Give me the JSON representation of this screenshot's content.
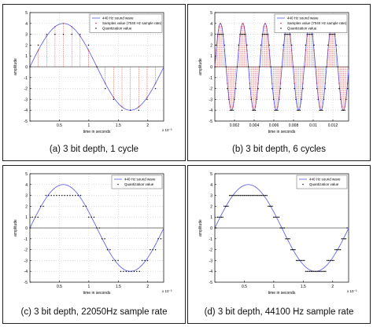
{
  "chart_data": [
    {
      "id": "a",
      "type": "line",
      "caption": "(a)      3 bit depth, 1 cycle",
      "xlabel": "time in seconds",
      "ylabel": "amplitude",
      "x_multiplier": "x 10⁻³",
      "xlim": [
        0,
        2.27
      ],
      "ylim": [
        -5,
        5
      ],
      "xticks": [
        0.5,
        1,
        1.5,
        2
      ],
      "xtick_labels": [
        "0.5",
        "1",
        "1.5",
        "2"
      ],
      "yticks": [
        -5,
        -4,
        -3,
        -2,
        -1,
        0,
        1,
        2,
        3,
        4,
        5
      ],
      "grid": true,
      "legend_position": "top-right",
      "legend": [
        "440 Hz sound wave",
        "Samples value (7040 Hz sample rate)",
        "Quantization value"
      ],
      "wave": {
        "frequency_hz": 440,
        "amplitude": 4,
        "cycles": 1
      },
      "samples": {
        "sample_rate_hz": 7040,
        "count": 16,
        "stems": true,
        "bit_depth": 3
      }
    },
    {
      "id": "b",
      "type": "line",
      "caption": "(b) 3 bit depth, 6 cycles",
      "xlabel": "time in seconds",
      "ylabel": "amplitude",
      "x_multiplier": "",
      "xlim": [
        0,
        0.0136
      ],
      "ylim": [
        -5,
        5
      ],
      "xticks": [
        0.002,
        0.004,
        0.006,
        0.008,
        0.01,
        0.012
      ],
      "xtick_labels": [
        "0.002",
        "0.004",
        "0.006",
        "0.008",
        "0.01",
        "0.012"
      ],
      "yticks": [
        -5,
        -4,
        -3,
        -2,
        -1,
        0,
        1,
        2,
        3,
        4,
        5
      ],
      "grid": true,
      "legend_position": "top-right",
      "legend": [
        "440 Hz sound wave",
        "Samples value (7040 Hz sample rate)",
        "Quantization value"
      ],
      "wave": {
        "frequency_hz": 440,
        "amplitude": 4,
        "cycles": 6
      },
      "samples": {
        "sample_rate_hz": 7040,
        "count": 96,
        "stems": true,
        "bit_depth": 3
      }
    },
    {
      "id": "c",
      "type": "line",
      "caption": "(c) 3 bit depth, 22050Hz sample rate",
      "xlabel": "time in seconds",
      "ylabel": "amplitude",
      "x_multiplier": "x 10⁻³",
      "xlim": [
        0,
        2.27
      ],
      "ylim": [
        -5,
        5
      ],
      "xticks": [
        0.5,
        1,
        1.5,
        2
      ],
      "xtick_labels": [
        "0.5",
        "1",
        "1.5",
        "2"
      ],
      "yticks": [
        -5,
        -4,
        -3,
        -2,
        -1,
        0,
        1,
        2,
        3,
        4,
        5
      ],
      "grid": true,
      "legend_position": "top-right",
      "legend": [
        "440 Hz sound wave",
        "Quantization value"
      ],
      "wave": {
        "frequency_hz": 440,
        "amplitude": 4,
        "cycles": 1
      },
      "samples": {
        "sample_rate_hz": 22050,
        "count": 50,
        "stems": false,
        "bit_depth": 3
      }
    },
    {
      "id": "d",
      "type": "line",
      "caption": "(d) 3 bit depth, 44100 Hz sample rate",
      "xlabel": "time in seconds",
      "ylabel": "amplitude",
      "x_multiplier": "x 10⁻³",
      "xlim": [
        0,
        2.27
      ],
      "ylim": [
        -5,
        5
      ],
      "xticks": [
        0.5,
        1,
        1.5,
        2
      ],
      "xtick_labels": [
        "0.5",
        "1",
        "1.5",
        "2"
      ],
      "yticks": [
        -5,
        -4,
        -3,
        -2,
        -1,
        0,
        1,
        2,
        3,
        4,
        5
      ],
      "grid": false,
      "legend_position": "top-right",
      "legend": [
        "440 Hz sound wave",
        "Quantization value"
      ],
      "wave": {
        "frequency_hz": 440,
        "amplitude": 4,
        "cycles": 1
      },
      "samples": {
        "sample_rate_hz": 44100,
        "count": 100,
        "stems": false,
        "bit_depth": 3
      }
    }
  ],
  "colors": {
    "wave": "#5555ee",
    "samples": "#cc2222",
    "quantization": "#111111",
    "axis": "#000000",
    "grid": "#bbbbbb"
  }
}
